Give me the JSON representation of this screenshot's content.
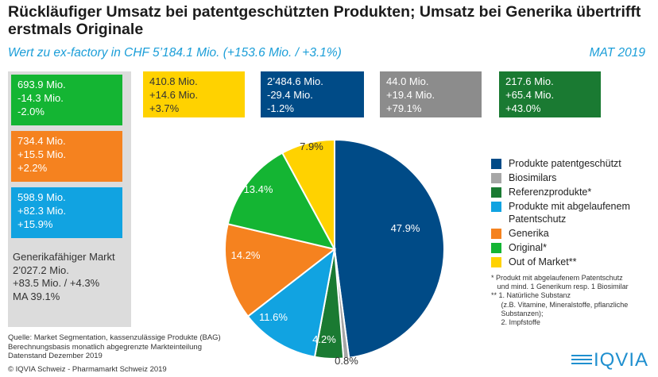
{
  "header": {
    "title": "Rückläufiger Umsatz bei patentgeschützten Produkten; Umsatz bei Generika übertrifft erstmals Originale",
    "subtitle": "Wert zu ex-factory in CHF 5’184.1 Mio. (+153.6 Mio. / +3.1%)",
    "period": "MAT 2019"
  },
  "colors": {
    "patent": "#004b87",
    "biosimilars": "#a6a6a6",
    "referenz": "#1a7a32",
    "expired": "#11a3e1",
    "generika": "#f5821f",
    "original": "#14b533",
    "out_of_market": "#ffd200"
  },
  "boxes": {
    "original": [
      "693.9 Mio.",
      "-14.3 Mio.",
      "-2.0%"
    ],
    "generika": [
      "734.4 Mio.",
      "+15.5 Mio.",
      "+2.2%"
    ],
    "expired": [
      "598.9 Mio.",
      "+82.3 Mio.",
      "+15.9%"
    ],
    "out_of_market": [
      "410.8 Mio.",
      "+14.6 Mio.",
      "+3.7%"
    ],
    "patent": [
      "2’484.6 Mio.",
      "-29.4 Mio.",
      "-1.2%"
    ],
    "biosimilars": [
      "44.0 Mio.",
      "+19.4 Mio.",
      "+79.1%"
    ],
    "referenz": [
      "217.6 Mio.",
      "+65.4 Mio.",
      "+43.0%"
    ]
  },
  "generic_market": [
    "Generikafähiger Markt",
    "2’027.2 Mio.",
    "+83.5 Mio. / +4.3%",
    "MA 39.1%"
  ],
  "chart_data": {
    "type": "pie",
    "title": "",
    "slices": [
      {
        "name": "Produkte patentgeschützt",
        "value": 47.9,
        "label": "47.9%",
        "color_key": "patent"
      },
      {
        "name": "Biosimilars",
        "value": 0.8,
        "label": "0.8%",
        "color_key": "biosimilars"
      },
      {
        "name": "Referenzprodukte*",
        "value": 4.2,
        "label": "4.2%",
        "color_key": "referenz"
      },
      {
        "name": "Produkte mit abgelaufenem Patentschutz",
        "value": 11.6,
        "label": "11.6%",
        "color_key": "expired"
      },
      {
        "name": "Generika",
        "value": 14.2,
        "label": "14.2%",
        "color_key": "generika"
      },
      {
        "name": "Original*",
        "value": 13.4,
        "label": "13.4%",
        "color_key": "original"
      },
      {
        "name": "Out of Market**",
        "value": 7.9,
        "label": "7.9%",
        "color_key": "out_of_market"
      }
    ],
    "start_angle_deg": 0,
    "direction": "clockwise",
    "legend_position": "right"
  },
  "legend": [
    {
      "label": "Produkte patentgeschützt",
      "color_key": "patent"
    },
    {
      "label": "Biosimilars",
      "color_key": "biosimilars"
    },
    {
      "label": "Referenzprodukte*",
      "color_key": "referenz"
    },
    {
      "label": "Produkte mit abgelaufenem Patentschutz",
      "color_key": "expired"
    },
    {
      "label": "Generika",
      "color_key": "generika"
    },
    {
      "label": "Original*",
      "color_key": "original"
    },
    {
      "label": "Out of Market**",
      "color_key": "out_of_market"
    }
  ],
  "notes": [
    "* Produkt mit abgelaufenem Patentschutz",
    "   und mind. 1 Generikum resp. 1 Biosimilar",
    "** 1. Natürliche Substanz",
    "     (z.B. Vitamine, Mineralstoffe, pflanzliche",
    "     Substanzen);",
    "     2. Impfstoffe"
  ],
  "source": [
    "Quelle: Market Segmentation, kassenzulässige Produkte (BAG)",
    "Berechnungsbasis monatlich abgegrenzte Markteinteilung",
    "Datenstand Dezember 2019"
  ],
  "copyright": "© IQVIA Schweiz - Pharmamarkt Schweiz 2019",
  "logo": {
    "text": "IQVIA"
  }
}
